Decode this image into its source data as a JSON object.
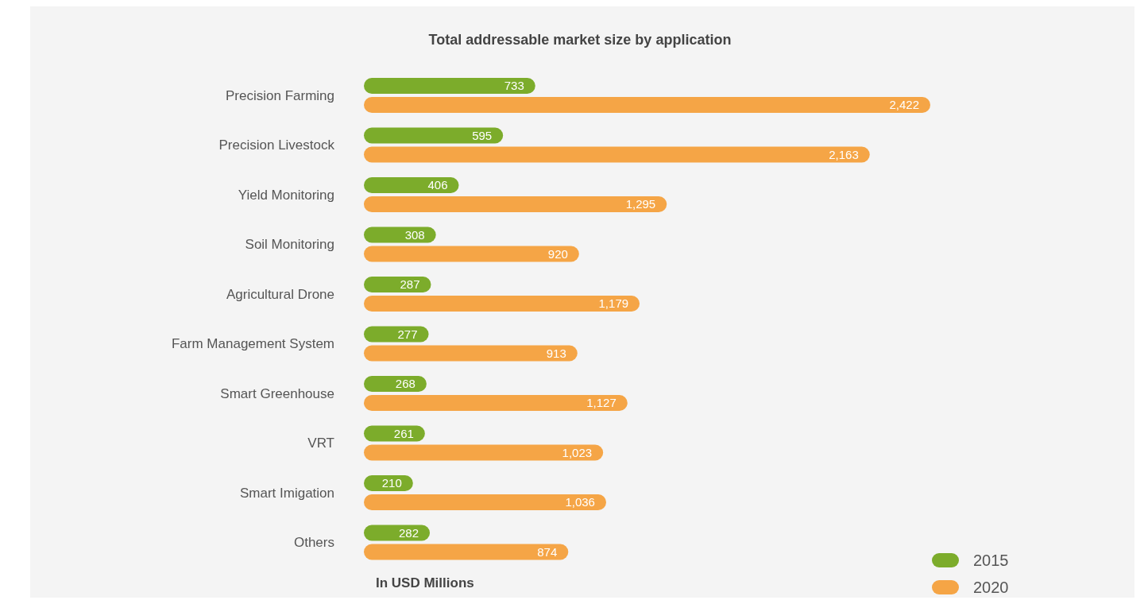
{
  "chart_data": {
    "type": "bar",
    "orientation": "horizontal",
    "title": "Total addressable market size by application",
    "categories": [
      "Precision Farming",
      "Precision Livestock",
      "Yield Monitoring",
      "Soil Monitoring",
      "Agricultural Drone",
      "Farm Management System",
      "Smart Greenhouse",
      "VRT",
      "Smart Imigation",
      "Others"
    ],
    "series": [
      {
        "name": "2015",
        "color": "#7cac2b",
        "values": [
          733,
          595,
          406,
          308,
          287,
          277,
          268,
          261,
          210,
          282
        ],
        "value_labels": [
          "733",
          "595",
          "406",
          "308",
          "287",
          "277",
          "268",
          "261",
          "210",
          "282"
        ]
      },
      {
        "name": "2020",
        "color": "#f5a546",
        "values": [
          2422,
          2163,
          1295,
          920,
          1179,
          913,
          1127,
          1023,
          1036,
          874
        ],
        "value_labels": [
          "2,422",
          "2,163",
          "1,295",
          "920",
          "1,179",
          "913",
          "1,127",
          "1,023",
          "1,036",
          "874"
        ]
      }
    ],
    "legend": "bottom right",
    "grid": false,
    "annotations": [
      "In USD Millions"
    ]
  }
}
